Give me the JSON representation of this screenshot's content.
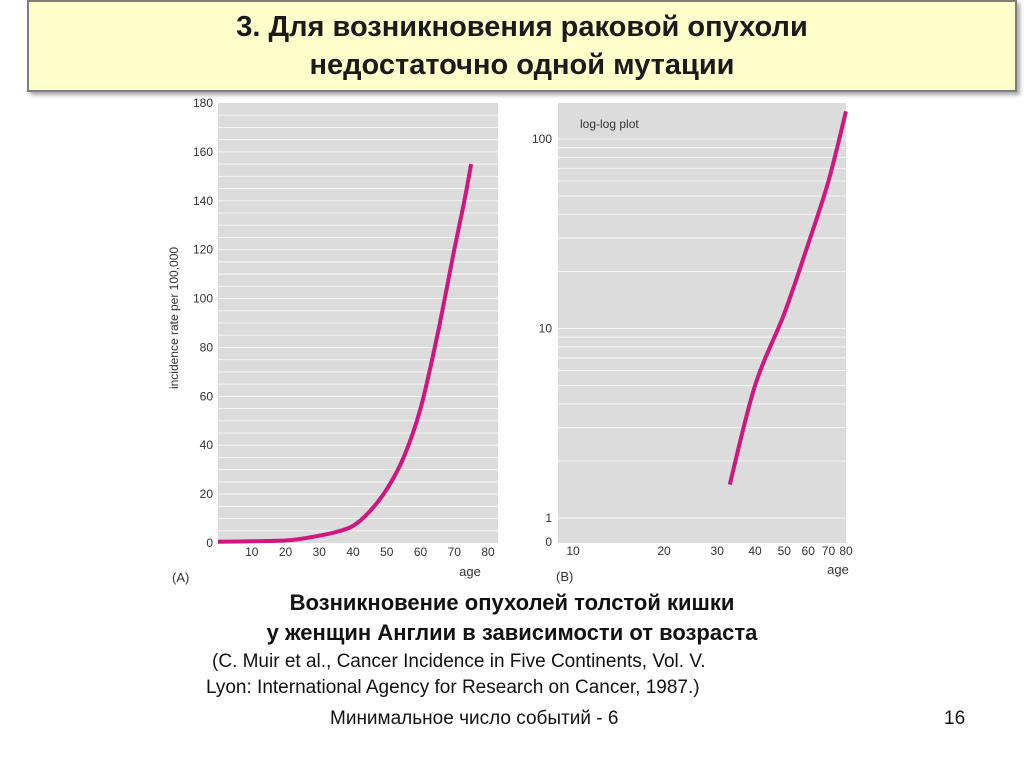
{
  "slide": {
    "title_line1": "3. Для возникновения раковой опухоли",
    "title_line2": "недостаточно одной мутации",
    "caption_line1": "Возникновение опухолей толстой кишки",
    "caption_line2": "у женщин Англии в зависимости от возраста",
    "reference_line1": "(C. Muir et al., Cancer Incidence in Five Continents, Vol. V.",
    "reference_line2": "Lyon: International Agency for Research on Cancer, 1987.)",
    "footer_note": "Минимальное число событий - 6",
    "page_number": "16"
  },
  "colors": {
    "plot_bg": "#dcdcdc",
    "curve": "#d0177f",
    "title_bg": "#ffffcc"
  },
  "chart_data": [
    {
      "type": "line",
      "panel_label": "(A)",
      "xlabel": "age",
      "ylabel": "incidence rate per 100,000",
      "xlim": [
        0,
        80
      ],
      "ylim": [
        0,
        180
      ],
      "xticks": [
        0,
        10,
        20,
        30,
        40,
        50,
        60,
        70,
        80
      ],
      "yticks": [
        0,
        20,
        40,
        60,
        80,
        100,
        120,
        140,
        160,
        180
      ],
      "series": [
        {
          "x": [
            0,
            10,
            20,
            25,
            30,
            35,
            40,
            45,
            50,
            55,
            60,
            65,
            70,
            73,
            75
          ],
          "y": [
            0.5,
            0.7,
            1,
            1.8,
            3,
            4.5,
            7,
            13,
            22,
            35,
            55,
            85,
            120,
            140,
            155
          ]
        }
      ]
    },
    {
      "type": "line",
      "panel_label": "(B)",
      "annotation": "log-log plot",
      "xlabel": "age",
      "scale": "log-log",
      "xticks": [
        10,
        20,
        30,
        40,
        50,
        60,
        70,
        80
      ],
      "ytick_labels": [
        "0",
        "1",
        "10",
        "100"
      ],
      "series": [
        {
          "x": [
            33,
            40,
            50,
            60,
            70,
            80
          ],
          "y": [
            1.5,
            5,
            12,
            28,
            60,
            140
          ]
        }
      ]
    }
  ]
}
